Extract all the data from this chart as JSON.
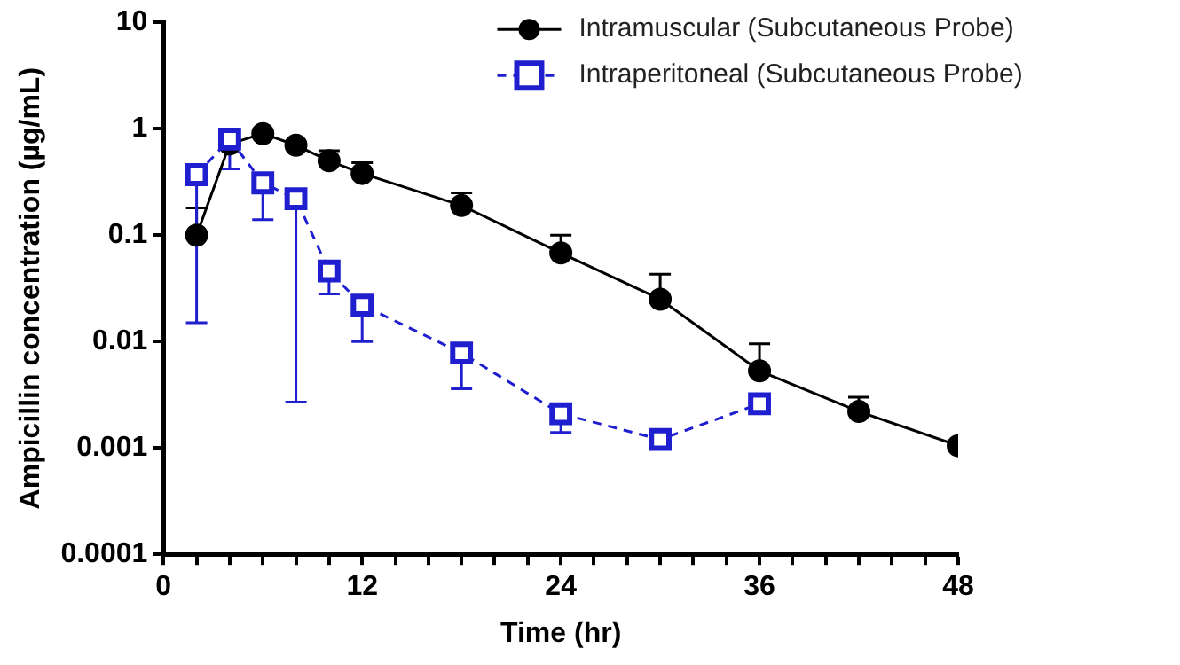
{
  "chart_data": {
    "type": "line",
    "xlabel": "Time (hr)",
    "ylabel": "Ampicillin concentration (µg/mL)",
    "log": "y",
    "grid": false,
    "legend": "top right",
    "xlim": [
      0,
      48
    ],
    "xticks": [
      0,
      {
        "value": 2,
        "label": null
      },
      {
        "value": 4,
        "label": null
      },
      {
        "value": 6,
        "label": null
      },
      {
        "value": 8,
        "label": null
      },
      {
        "value": 10,
        "label": null
      },
      12,
      {
        "value": 14,
        "label": null
      },
      {
        "value": 16,
        "label": null
      },
      {
        "value": 18,
        "label": null
      },
      {
        "value": 20,
        "label": null
      },
      {
        "value": 22,
        "label": null
      },
      24,
      {
        "value": 26,
        "label": null
      },
      {
        "value": 28,
        "label": null
      },
      {
        "value": 30,
        "label": null
      },
      {
        "value": 32,
        "label": null
      },
      {
        "value": 34,
        "label": null
      },
      36,
      {
        "value": 38,
        "label": null
      },
      {
        "value": 40,
        "label": null
      },
      {
        "value": 42,
        "label": null
      },
      {
        "value": 44,
        "label": null
      },
      {
        "value": 46,
        "label": null
      },
      48
    ],
    "ylim": [
      0.0001,
      10
    ],
    "yticks": [
      0.0001,
      0.001,
      0.01,
      0.1,
      1,
      10
    ],
    "series": [
      {
        "name": "Intramuscular (Subcutaneous Probe)",
        "color": "#000000",
        "marker": "circle",
        "line_style": "solid",
        "x": [
          2,
          4,
          6,
          8,
          10,
          12,
          18,
          24,
          30,
          36,
          42,
          48
        ],
        "values": [
          0.1,
          0.72,
          0.9,
          0.7,
          0.5,
          0.38,
          0.19,
          0.068,
          0.025,
          0.0053,
          0.0022,
          0.00105
        ],
        "errors": [
          [
            0.1,
            0.18
          ],
          null,
          null,
          null,
          [
            0.5,
            0.62
          ],
          [
            0.38,
            0.48
          ],
          [
            0.19,
            0.25
          ],
          [
            0.068,
            0.1
          ],
          [
            0.025,
            0.043
          ],
          [
            0.0053,
            0.0095
          ],
          [
            0.0022,
            0.003
          ],
          null
        ]
      },
      {
        "name": "Intraperitoneal (Subcutaneous Probe)",
        "color": "#1f1fd0",
        "marker": "square",
        "line_style": "dashed",
        "x": [
          2,
          4,
          6,
          8,
          10,
          12,
          18,
          24,
          30,
          36
        ],
        "values": [
          0.37,
          0.8,
          0.31,
          0.22,
          0.046,
          0.022,
          0.0078,
          0.0021,
          0.0012,
          0.0026
        ],
        "errors": [
          [
            0.015,
            0.37
          ],
          [
            0.42,
            0.8
          ],
          [
            0.14,
            0.31
          ],
          [
            0.0027,
            0.22
          ],
          [
            0.028,
            0.046
          ],
          [
            0.01,
            0.022
          ],
          [
            0.0036,
            0.0078
          ],
          [
            0.0014,
            0.0021
          ],
          [
            0.001,
            0.0012
          ],
          null
        ]
      }
    ]
  }
}
